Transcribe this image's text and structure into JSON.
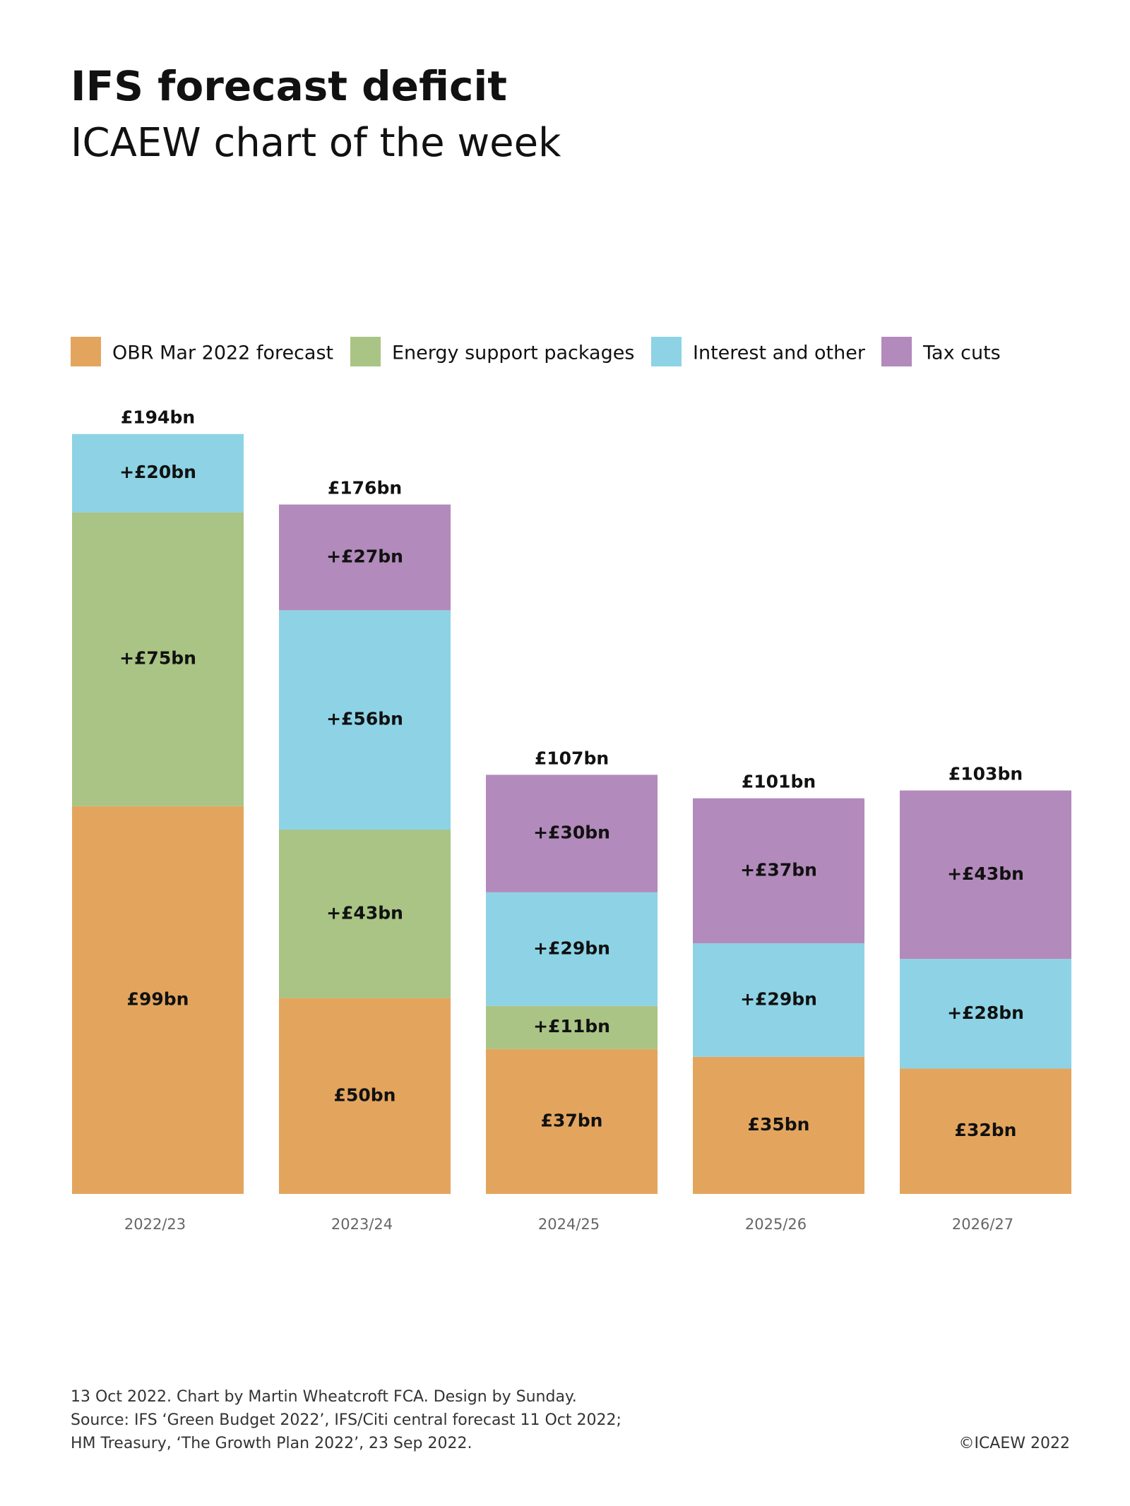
{
  "chart_data": {
    "type": "stacked-bar",
    "title": "IFS forecast deficit",
    "subtitle": "ICAEW chart of the week",
    "categories": [
      "2022/23",
      "2023/24",
      "2024/25",
      "2025/26",
      "2026/27"
    ],
    "series": [
      {
        "name": "OBR Mar 2022 forecast",
        "color": "#e3a55e",
        "values": [
          99,
          50,
          37,
          35,
          32
        ],
        "value_labels": [
          "£99bn",
          "£50bn",
          "£37bn",
          "£35bn",
          "£32bn"
        ]
      },
      {
        "name": "Energy support packages",
        "color": "#a9c484",
        "values": [
          75,
          43,
          11,
          null,
          null
        ],
        "value_labels": [
          "+£75bn",
          "+£43bn",
          "+£11bn",
          null,
          null
        ]
      },
      {
        "name": "Interest and other",
        "color": "#8dd3e5",
        "values": [
          20,
          56,
          29,
          29,
          28
        ],
        "value_labels": [
          "+£20bn",
          "+£56bn",
          "+£29bn",
          "+£29bn",
          "+£28bn"
        ]
      },
      {
        "name": "Tax cuts",
        "color": "#b28abb",
        "values": [
          null,
          27,
          30,
          37,
          43
        ],
        "value_labels": [
          null,
          "+£27bn",
          "+£30bn",
          "+£37bn",
          "+£43bn"
        ]
      }
    ],
    "totals": {
      "values": [
        194,
        176,
        107,
        101,
        103
      ],
      "value_labels": [
        "£194bn",
        "£176bn",
        "£107bn",
        "£101bn",
        "£103bn"
      ]
    },
    "legend": "top-left",
    "footer": [
      "13 Oct 2022.  Chart by Martin Wheatcroft FCA. Design by Sunday.",
      "Source: IFS ‘Green Budget 2022’, IFS/Citi central forecast 11 Oct 2022;",
      "HM Treasury, ‘The Growth Plan 2022’, 23 Sep 2022."
    ],
    "copyright": "©ICAEW 2022"
  }
}
